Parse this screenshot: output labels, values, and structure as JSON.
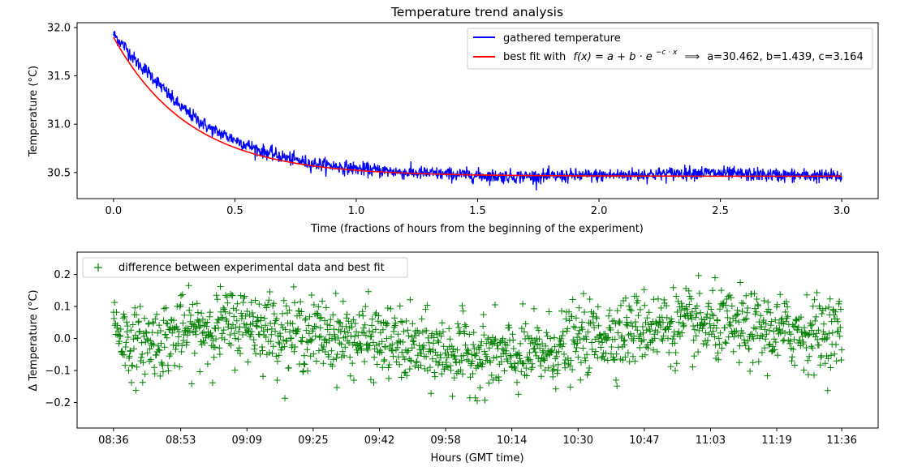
{
  "title": "Temperature trend analysis",
  "chart_data": [
    {
      "type": "line",
      "title": "Temperature trend analysis",
      "xlabel": "Time (fractions of hours from the beginning of the experiment)",
      "ylabel": "Temperature (°C)",
      "xlim": [
        -0.15,
        3.15
      ],
      "ylim": [
        30.23,
        32.05
      ],
      "xticks": [
        0.0,
        0.5,
        1.0,
        1.5,
        2.0,
        2.5,
        3.0
      ],
      "xtick_labels": [
        "0.0",
        "0.5",
        "1.0",
        "1.5",
        "2.0",
        "2.5",
        "3.0"
      ],
      "yticks": [
        30.5,
        31.0,
        31.5,
        32.0
      ],
      "ytick_labels": [
        "30.5",
        "31.0",
        "31.5",
        "32.0"
      ],
      "legend_position": "top-right",
      "fit": {
        "a": 30.462,
        "b": 1.439,
        "c": 3.164
      },
      "series": [
        {
          "name": "gathered temperature",
          "color": "#0000ff",
          "style": "line",
          "points": [
            [
              0.0,
              31.93
            ],
            [
              0.05,
              31.79
            ],
            [
              0.1,
              31.63
            ],
            [
              0.15,
              31.52
            ],
            [
              0.2,
              31.38
            ],
            [
              0.25,
              31.24
            ],
            [
              0.3,
              31.13
            ],
            [
              0.35,
              31.04
            ],
            [
              0.4,
              30.95
            ],
            [
              0.5,
              30.84
            ],
            [
              0.6,
              30.73
            ],
            [
              0.7,
              30.66
            ],
            [
              0.8,
              30.6
            ],
            [
              0.9,
              30.57
            ],
            [
              1.0,
              30.54
            ],
            [
              1.2,
              30.5
            ],
            [
              1.4,
              30.48
            ],
            [
              1.6,
              30.46
            ],
            [
              1.8,
              30.46
            ],
            [
              2.0,
              30.47
            ],
            [
              2.2,
              30.48
            ],
            [
              2.4,
              30.5
            ],
            [
              2.6,
              30.48
            ],
            [
              2.8,
              30.47
            ],
            [
              3.0,
              30.46
            ]
          ],
          "noise_amplitude": 0.08
        },
        {
          "name": "best fit with f(x) = a + b · e^(−c·x)  ⟹  a=30.462, b=1.439, c=3.164",
          "color": "#ff0000",
          "style": "line",
          "formula": "a + b*exp(-c*x)"
        }
      ],
      "legend": [
        {
          "label": "gathered temperature",
          "color": "#0000ff"
        },
        {
          "label_prefix": "best fit with",
          "formula": "f(x) = a + b · e",
          "exponent": "−c · x",
          "arrow": "⟹",
          "params": "a=30.462, b=1.439, c=3.164",
          "color": "#ff0000"
        }
      ]
    },
    {
      "type": "scatter",
      "xlabel": "Hours (GMT time)",
      "ylabel": "Δ Temperature (°C)",
      "xlim": [
        -0.15,
        3.15
      ],
      "ylim": [
        -0.28,
        0.27
      ],
      "xticks": [
        0.0,
        0.2769,
        0.5497,
        0.8225,
        1.0954,
        1.3682,
        1.641,
        1.9138,
        2.1866,
        2.4594,
        2.7322,
        3.0
      ],
      "xtick_labels": [
        "08:36",
        "08:53",
        "09:09",
        "09:25",
        "09:42",
        "09:58",
        "10:14",
        "10:30",
        "10:47",
        "11:03",
        "11:19",
        "11:36"
      ],
      "yticks": [
        -0.2,
        -0.1,
        0.0,
        0.1,
        0.2
      ],
      "ytick_labels": [
        "−0.2",
        "−0.1",
        "0.0",
        "0.1",
        "0.2"
      ],
      "legend_position": "top-left",
      "series": [
        {
          "name": "difference between experimental data and best fit",
          "color": "#008000",
          "marker": "+",
          "trend": [
            [
              0.0,
              0.06
            ],
            [
              0.05,
              -0.01
            ],
            [
              0.1,
              -0.02
            ],
            [
              0.2,
              0.0
            ],
            [
              0.3,
              0.02
            ],
            [
              0.45,
              0.04
            ],
            [
              0.55,
              0.05
            ],
            [
              0.7,
              0.02
            ],
            [
              0.9,
              0.01
            ],
            [
              1.1,
              -0.01
            ],
            [
              1.3,
              -0.04
            ],
            [
              1.5,
              -0.05
            ],
            [
              1.65,
              -0.06
            ],
            [
              1.8,
              -0.04
            ],
            [
              1.95,
              0.0
            ],
            [
              2.1,
              0.02
            ],
            [
              2.2,
              0.04
            ],
            [
              2.4,
              0.04
            ],
            [
              2.6,
              0.03
            ],
            [
              2.8,
              0.02
            ],
            [
              3.0,
              0.02
            ]
          ],
          "spread": 0.055
        }
      ]
    }
  ]
}
